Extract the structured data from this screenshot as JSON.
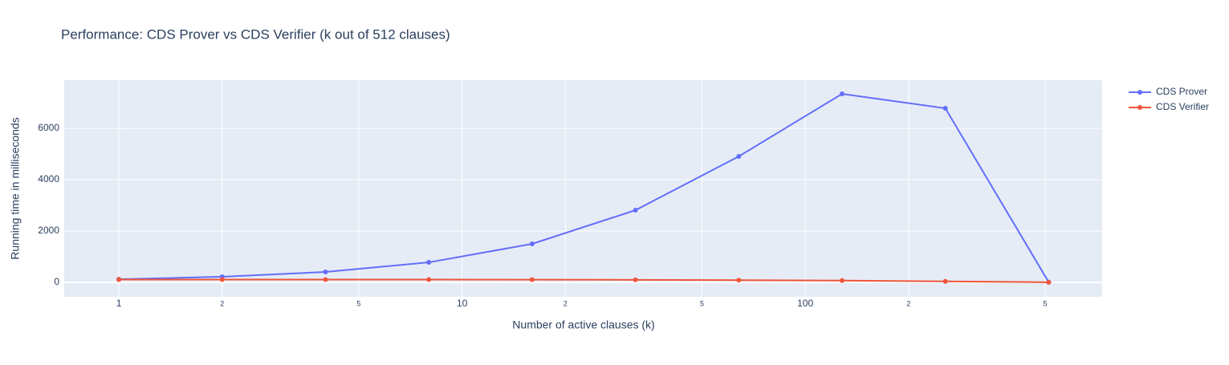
{
  "chart_data": {
    "type": "line",
    "title": "Performance: CDS Prover vs CDS Verifier (k out of 512 clauses)",
    "x_label": "Number of active clauses (k)",
    "y_label": "Running time in milliseconds",
    "x": [
      1,
      2,
      4,
      8,
      16,
      32,
      64,
      128,
      256,
      512
    ],
    "series": [
      {
        "name": "CDS Prover",
        "color": "#636efa",
        "values": [
          120,
          220,
          406,
          780,
          1500,
          2812,
          4906,
          7344,
          6781,
          10
        ]
      },
      {
        "name": "CDS Verifier",
        "color": "#ef553b",
        "values": [
          110,
          110,
          110,
          110,
          105,
          100,
          85,
          70,
          40,
          5
        ]
      }
    ],
    "x_log": true,
    "xlim": [
      0.693,
      733
    ],
    "xticks": [
      1,
      2,
      5,
      10,
      {
        "value": 20,
        "label": "2"
      },
      {
        "value": 50,
        "label": "5"
      },
      100,
      {
        "value": 200,
        "label": "2"
      },
      {
        "value": 500,
        "label": "5"
      }
    ],
    "ylim": [
      -562,
      7875
    ],
    "yticks": [
      0,
      2000,
      4000,
      6000
    ],
    "grid": true,
    "legend": "right"
  }
}
